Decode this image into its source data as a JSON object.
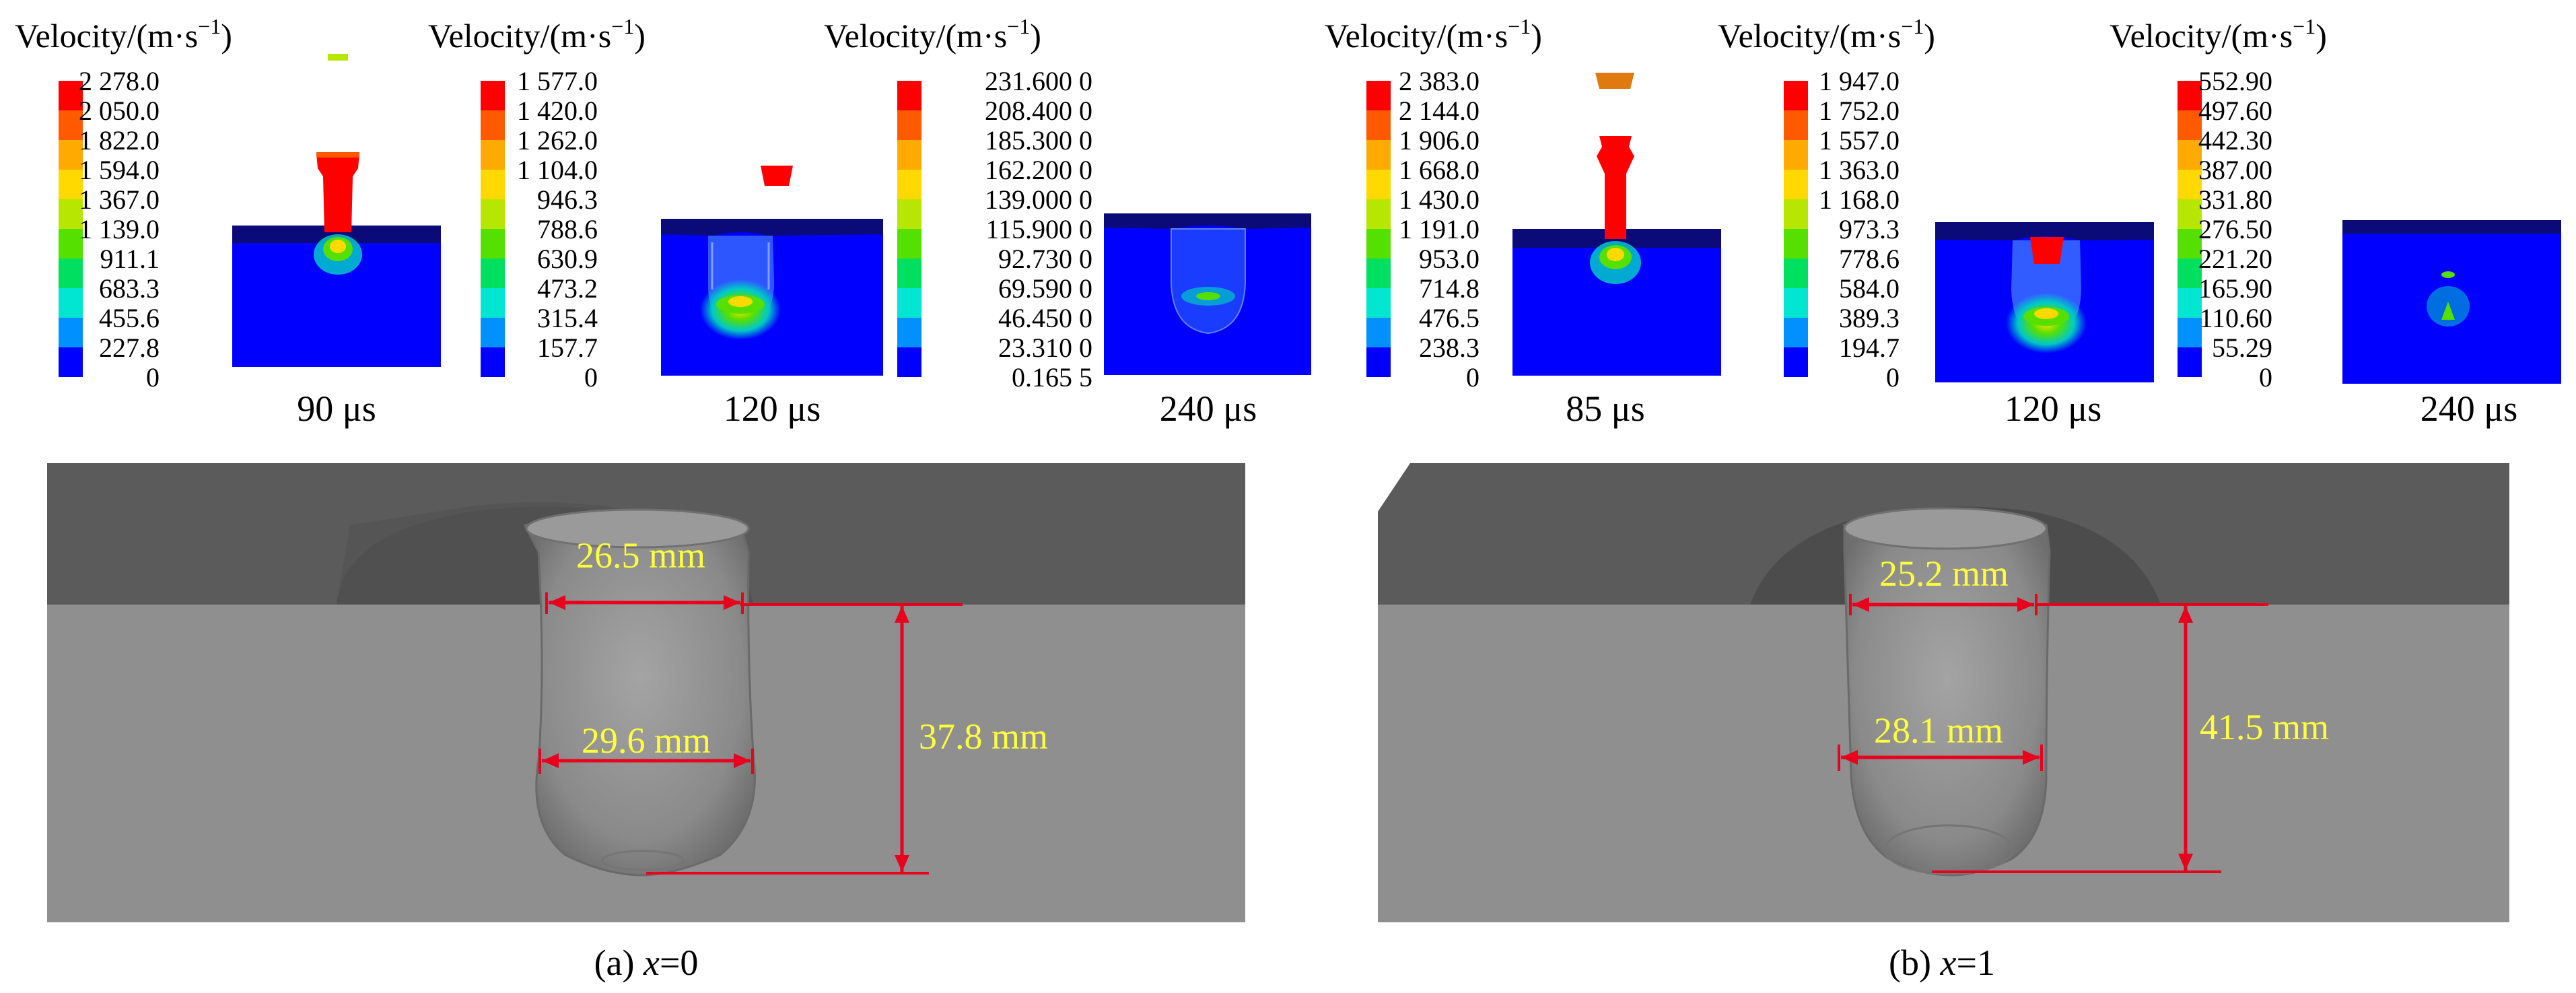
{
  "colorbar_title": "Velocity/(m·s",
  "colorbar_title_exp": "−1",
  "colorbar_title_close": ")",
  "colorbar_colors": [
    "#ff0000",
    "#ff5a00",
    "#ffaa00",
    "#ffd900",
    "#b7e600",
    "#55e000",
    "#00e060",
    "#00e6d0",
    "#0090ff",
    "#0000ff"
  ],
  "simulations": [
    {
      "case": "a",
      "frames": [
        {
          "time": "90 μs",
          "ticks": [
            "2 278.0",
            "2 050.0",
            "1 822.0",
            "1 594.0",
            "1 367.0",
            "1 139.0",
            "911.1",
            "683.3",
            "455.6",
            "227.8",
            "0"
          ]
        },
        {
          "time": "120 μs",
          "ticks": [
            "1 577.0",
            "1 420.0",
            "1 262.0",
            "1 104.0",
            "946.3",
            "788.6",
            "630.9",
            "473.2",
            "315.4",
            "157.7",
            "0"
          ]
        },
        {
          "time": "240 μs",
          "ticks": [
            "231.600 0",
            "208.400 0",
            "185.300 0",
            "162.200 0",
            "139.000 0",
            "115.900 0",
            "92.730 0",
            "69.590 0",
            "46.450 0",
            "23.310 0",
            "0.165 5"
          ]
        }
      ]
    },
    {
      "case": "b",
      "frames": [
        {
          "time": "85 μs",
          "ticks": [
            "2 383.0",
            "2 144.0",
            "1 906.0",
            "1 668.0",
            "1 430.0",
            "1 191.0",
            "953.0",
            "714.8",
            "476.5",
            "238.3",
            "0"
          ]
        },
        {
          "time": "120 μs",
          "ticks": [
            "1 947.0",
            "1 752.0",
            "1 557.0",
            "1 363.0",
            "1 168.0",
            "973.3",
            "778.6",
            "584.0",
            "389.3",
            "194.7",
            "0"
          ]
        },
        {
          "time": "240 μs",
          "ticks": [
            "552.90",
            "497.60",
            "442.30",
            "387.00",
            "331.80",
            "276.50",
            "221.20",
            "165.90",
            "110.60",
            "55.29",
            "0"
          ]
        }
      ]
    }
  ],
  "crater_panels": [
    {
      "caption_prefix": "(a) ",
      "caption_var": "x",
      "caption_suffix": "=0",
      "top_diameter": "26.5 mm",
      "max_diameter": "29.6 mm",
      "depth": "37.8 mm"
    },
    {
      "caption_prefix": "(b) ",
      "caption_var": "x",
      "caption_suffix": "=1",
      "top_diameter": "25.2 mm",
      "max_diameter": "28.1 mm",
      "depth": "41.5 mm"
    }
  ],
  "colors": {
    "target_blue": "#0000ff",
    "target_dark": "#0a0a78",
    "steel_dark": "#5b5b5b",
    "steel_light": "#8f8f8f",
    "dimension_line": "#e8001c",
    "dimension_text": "#ffff3c"
  }
}
